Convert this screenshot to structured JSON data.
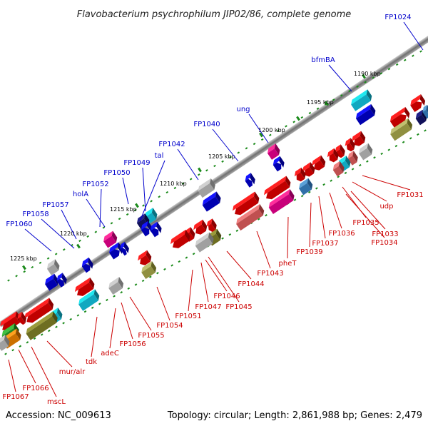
{
  "title": "Flavobacterium psychrophilum JIP02/86, complete genome",
  "footer": {
    "accession": "Accession: NC_009613",
    "summary": "Topology: circular; Length: 2,861,988 bp; Genes: 2,479"
  },
  "colors": {
    "forward_label": "#0000cc",
    "reverse_label": "#cc0000",
    "backbone": "#808080",
    "tick": "#1a8a1a"
  },
  "kbp_labels": [
    "1190 kbp",
    "1195 kbp",
    "1200 kbp",
    "1205 kbp",
    "1210 kbp",
    "1215 kbp",
    "1220 kbp",
    "1225 kbp"
  ],
  "forward_genes": [
    "FP1024",
    "bfmBA",
    "ung",
    "FP1040",
    "FP1042",
    "tal",
    "FP1049",
    "FP1050",
    "FP1052",
    "holA",
    "FP1057",
    "FP1058",
    "FP1060"
  ],
  "reverse_genes": [
    "FP1031",
    "udp",
    "FP1035",
    "FP1033",
    "FP1034",
    "FP1036",
    "FP1037",
    "FP1039",
    "pheT",
    "FP1043",
    "FP1044",
    "FP1045",
    "FP1046",
    "FP1047",
    "FP1051",
    "FP1054",
    "FP1055",
    "FP1056",
    "adeC",
    "tdk",
    "mur/alr",
    "mscL",
    "FP1066",
    "FP1067"
  ]
}
